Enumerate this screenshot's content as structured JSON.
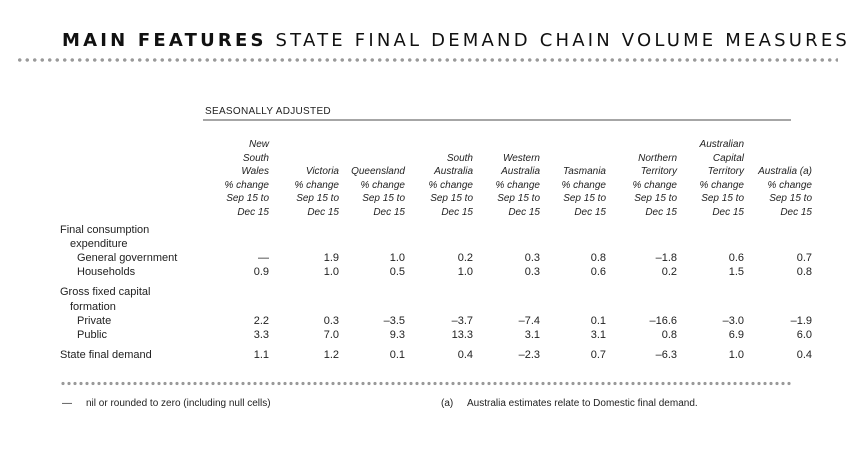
{
  "title": {
    "bold": "MAIN FEATURES",
    "light": "STATE FINAL DEMAND CHAIN VOLUME MEASURES"
  },
  "table_caption": "SEASONALLY ADJUSTED",
  "columns": [
    {
      "line1": "",
      "line2": "New",
      "line3": "South",
      "line4": "Wales",
      "line5": "% change",
      "line6": "Sep 15 to",
      "line7": "Dec 15"
    },
    {
      "line1": "",
      "line2": "",
      "line3": "",
      "line4": "Victoria",
      "line5": "% change",
      "line6": "Sep 15 to",
      "line7": "Dec 15"
    },
    {
      "line1": "",
      "line2": "",
      "line3": "",
      "line4": "Queensland",
      "line5": "% change",
      "line6": "Sep 15 to",
      "line7": "Dec 15"
    },
    {
      "line1": "",
      "line2": "",
      "line3": "South",
      "line4": "Australia",
      "line5": "% change",
      "line6": "Sep 15 to",
      "line7": "Dec 15"
    },
    {
      "line1": "",
      "line2": "",
      "line3": "Western",
      "line4": "Australia",
      "line5": "% change",
      "line6": "Sep 15 to",
      "line7": "Dec 15"
    },
    {
      "line1": "",
      "line2": "",
      "line3": "",
      "line4": "Tasmania",
      "line5": "% change",
      "line6": "Sep 15 to",
      "line7": "Dec 15"
    },
    {
      "line1": "",
      "line2": "",
      "line3": "Northern",
      "line4": "Territory",
      "line5": "% change",
      "line6": "Sep 15 to",
      "line7": "Dec 15"
    },
    {
      "line1": "",
      "line2": "Australian",
      "line3": "Capital",
      "line4": "Territory",
      "line5": "% change",
      "line6": "Sep 15 to",
      "line7": "Dec 15"
    },
    {
      "line1": "",
      "line2": "",
      "line3": "",
      "line4": "Australia (a)",
      "line5": "% change",
      "line6": "Sep 15 to",
      "line7": "Dec 15"
    }
  ],
  "rows": {
    "fce_heading_1": "Final consumption",
    "fce_heading_2": "expenditure",
    "general_government": {
      "label": "General government",
      "values": [
        "—",
        "1.9",
        "1.0",
        "0.2",
        "0.3",
        "0.8",
        "–1.8",
        "0.6",
        "0.7"
      ]
    },
    "households": {
      "label": "Households",
      "values": [
        "0.9",
        "1.0",
        "0.5",
        "1.0",
        "0.3",
        "0.6",
        "0.2",
        "1.5",
        "0.8"
      ]
    },
    "gfcf_heading_1": "Gross fixed capital",
    "gfcf_heading_2": "formation",
    "private": {
      "label": "Private",
      "values": [
        "2.2",
        "0.3",
        "–3.5",
        "–3.7",
        "–7.4",
        "0.1",
        "–16.6",
        "–3.0",
        "–1.9"
      ]
    },
    "public": {
      "label": "Public",
      "values": [
        "3.3",
        "7.0",
        "9.3",
        "13.3",
        "3.1",
        "3.1",
        "0.8",
        "6.9",
        "6.0"
      ]
    },
    "state_final_demand": {
      "label": "State final demand",
      "values": [
        "1.1",
        "1.2",
        "0.1",
        "0.4",
        "–2.3",
        "0.7",
        "–6.3",
        "1.0",
        "0.4"
      ]
    }
  },
  "footnotes": {
    "nil_symbol": "—",
    "nil_text": "nil or rounded to zero (including null cells)",
    "a_symbol": "(a)",
    "a_text": "Australia estimates relate to Domestic final demand."
  }
}
